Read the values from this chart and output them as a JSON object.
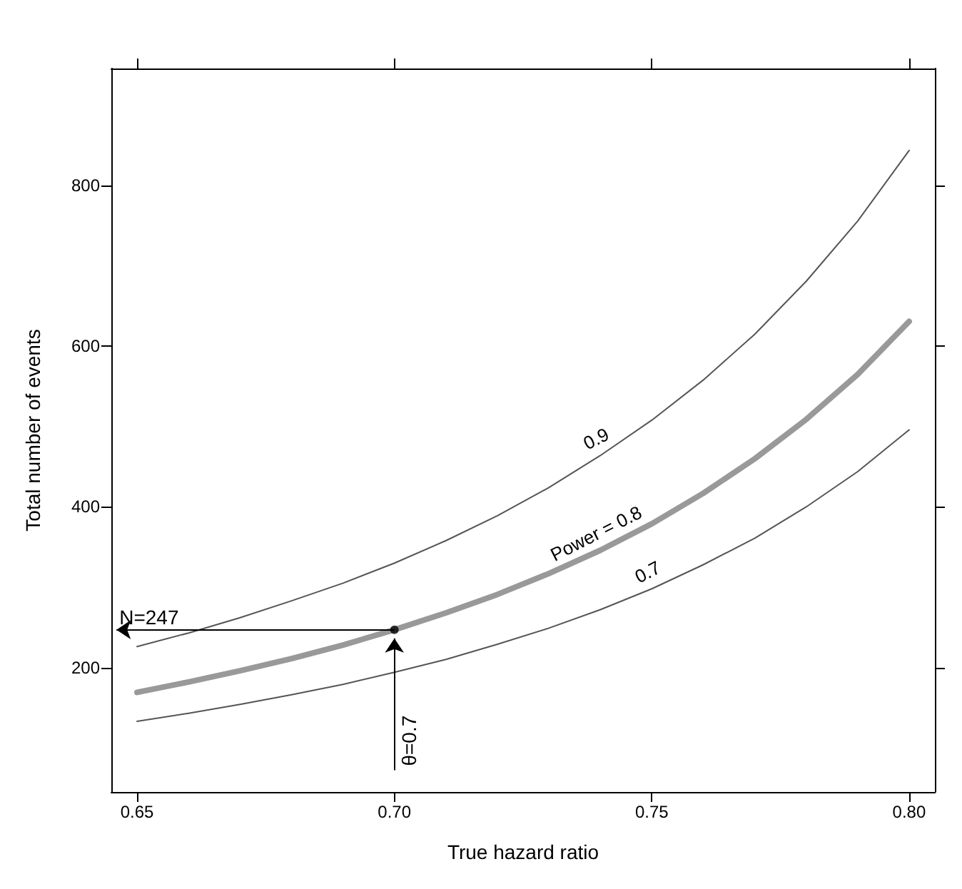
{
  "chart_data": {
    "type": "line",
    "xlabel": "True hazard ratio",
    "ylabel": "Total number of events",
    "x": [
      0.65,
      0.66,
      0.67,
      0.68,
      0.69,
      0.7,
      0.71,
      0.72,
      0.73,
      0.74,
      0.75,
      0.76,
      0.77,
      0.78,
      0.79,
      0.8
    ],
    "series": [
      {
        "name": "0.9",
        "color": "#555555",
        "values": [
          226,
          243,
          262,
          283,
          305,
          330,
          358,
          389,
          424,
          464,
          508,
          558,
          615,
          681,
          756,
          844
        ]
      },
      {
        "name": "Power = 0.8",
        "color": "#999999",
        "values": [
          169,
          182,
          196,
          211,
          228,
          247,
          268,
          291,
          317,
          346,
          379,
          417,
          460,
          509,
          565,
          631
        ]
      },
      {
        "name": "0.7",
        "color": "#555555",
        "values": [
          133,
          143,
          154,
          166,
          179,
          194,
          210,
          229,
          249,
          272,
          298,
          328,
          361,
          400,
          444,
          496
        ]
      },
      {
        "type": "scatter",
        "color": "#000000",
        "x": [
          0.7
        ],
        "values": [
          247
        ],
        "marker": "circle"
      }
    ],
    "xlim": [
      0.645,
      0.805
    ],
    "xticks": [
      {
        "value": 0.65,
        "label": "0.65"
      },
      {
        "value": 0.7,
        "label": "0.70"
      },
      {
        "value": 0.75,
        "label": "0.75"
      },
      {
        "value": 0.8,
        "label": "0.80"
      }
    ],
    "ylim": [
      45,
      946
    ],
    "yticks": [
      200,
      400,
      600,
      800
    ],
    "annotations": [
      {
        "text": "N=247",
        "x": 0.7,
        "y": 247
      },
      {
        "text": "θ=0.7",
        "x": 0.7,
        "y": 247
      }
    ],
    "grid": false,
    "legend": false,
    "marker": "none",
    "line_style": "solid"
  }
}
